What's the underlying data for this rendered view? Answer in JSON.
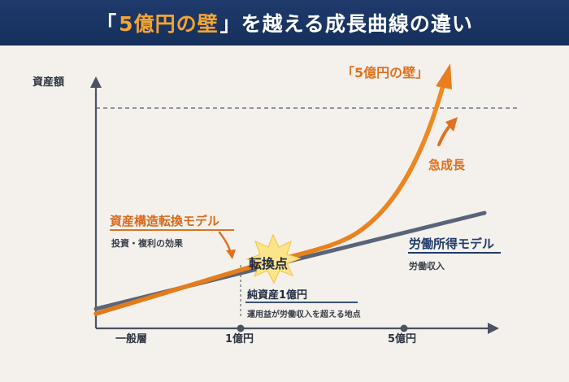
{
  "header": {
    "title_open": "「",
    "title_accent": "5億円の壁",
    "title_rest": "」を越える成長曲線の違い"
  },
  "axes": {
    "y_label": "資産額",
    "x_ticks": [
      "一般層",
      "1億円",
      "5億円"
    ]
  },
  "annotations": {
    "wall_label": "「5億円の壁」",
    "rapid_growth": "急成長",
    "pivot": "転換点",
    "net_assets": "純資産1億円",
    "net_assets_sub": "運用益が労働収入を超える地点"
  },
  "models": {
    "asset": {
      "title": "資産構造転換モデル",
      "subtitle": "投資・複利の効果"
    },
    "labor": {
      "title": "労働所得モデル",
      "subtitle": "労働収入"
    }
  },
  "colors": {
    "navy": "#1f3a6b",
    "orange": "#e0711d",
    "labor_line": "#5a6478",
    "burst": "#fbe48a",
    "background": "#f4f1ec"
  }
}
